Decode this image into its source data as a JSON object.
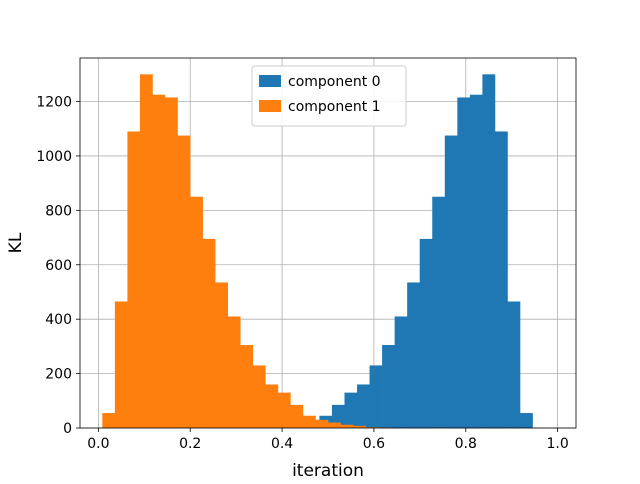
{
  "chart_data": {
    "type": "bar",
    "subtype": "histogram",
    "title": "",
    "xlabel": "iteration",
    "ylabel": "KL",
    "xlim": [
      -0.04,
      1.04
    ],
    "ylim": [
      0,
      1360
    ],
    "xticks": [
      0.0,
      0.2,
      0.4,
      0.6,
      0.8,
      1.0
    ],
    "xtick_labels": [
      "0.0",
      "0.2",
      "0.4",
      "0.6",
      "0.8",
      "1.0"
    ],
    "yticks": [
      0,
      200,
      400,
      600,
      800,
      1000,
      1200
    ],
    "ytick_labels": [
      "0",
      "200",
      "400",
      "600",
      "800",
      "1000",
      "1200"
    ],
    "grid": true,
    "legend_position": "top-center",
    "bin_width": 0.0273,
    "series": [
      {
        "name": "component 0",
        "color": "#1f77b4",
        "bin_starts": [
          0.3175,
          0.3448,
          0.3721,
          0.3994,
          0.4267,
          0.454,
          0.4813,
          0.5086,
          0.5359,
          0.5632,
          0.5905,
          0.6178,
          0.6451,
          0.6724,
          0.6997,
          0.727,
          0.7543,
          0.7816,
          0.8089,
          0.8362,
          0.8635,
          0.8908,
          0.9181,
          0.9454,
          0.9727
        ],
        "values": [
          2,
          3,
          8,
          12,
          20,
          30,
          45,
          85,
          130,
          160,
          230,
          305,
          410,
          535,
          695,
          850,
          1075,
          1215,
          1225,
          1300,
          1090,
          465,
          55,
          0,
          0
        ]
      },
      {
        "name": "component 1",
        "color": "#ff7f0e",
        "bin_starts": [
          0.0086,
          0.0359,
          0.0632,
          0.0905,
          0.1178,
          0.1451,
          0.1724,
          0.1997,
          0.227,
          0.2543,
          0.2816,
          0.3089,
          0.3362,
          0.3635,
          0.3908,
          0.4181,
          0.4454,
          0.4727,
          0.5,
          0.5273,
          0.5546,
          0.5819,
          0.6092,
          0.6365,
          0.6638
        ],
        "values": [
          55,
          465,
          1090,
          1300,
          1225,
          1215,
          1075,
          850,
          695,
          535,
          410,
          305,
          230,
          160,
          130,
          85,
          45,
          30,
          20,
          12,
          8,
          3,
          2,
          0,
          0
        ]
      }
    ]
  }
}
